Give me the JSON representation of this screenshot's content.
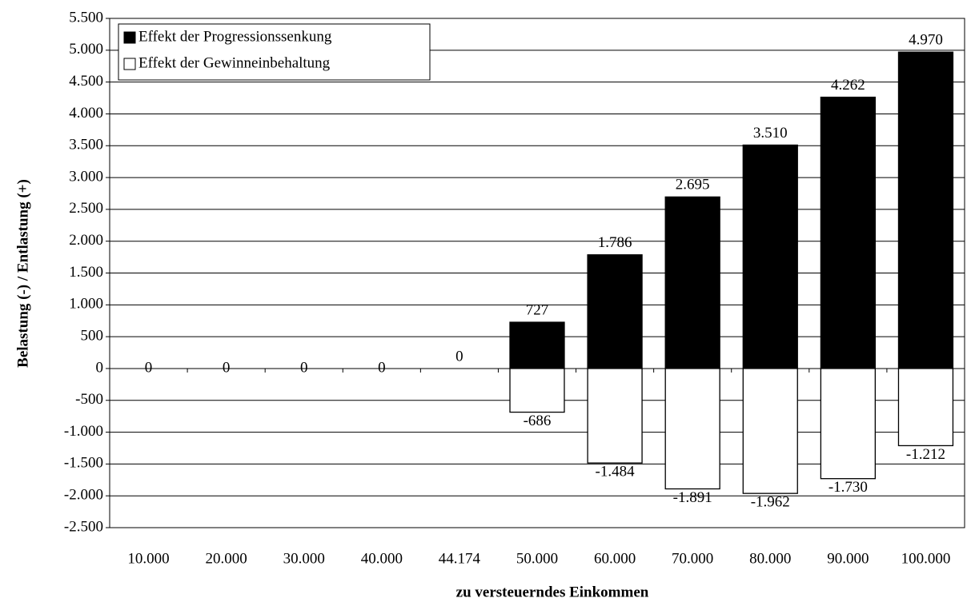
{
  "chart_data": {
    "type": "bar",
    "stacked": true,
    "x_label": "zu versteuerndes Einkommen",
    "y_label": "Belastung (-) / Entlastung (+)",
    "categories": [
      "10.000",
      "20.000",
      "30.000",
      "40.000",
      "44.174",
      "50.000",
      "60.000",
      "70.000",
      "80.000",
      "90.000",
      "100.000"
    ],
    "series": [
      {
        "name": "Effekt der Progressionssenkung",
        "color": "#000000",
        "values": [
          0,
          0,
          0,
          0,
          0,
          727,
          1786,
          2695,
          3510,
          4262,
          4970
        ],
        "value_labels": [
          null,
          null,
          null,
          null,
          "0",
          "727",
          "1.786",
          "2.695",
          "3.510",
          "4.262",
          "4.970"
        ]
      },
      {
        "name": "Effekt der Gewinneinbehaltung",
        "color": "#ffffff",
        "values": [
          0,
          0,
          0,
          0,
          null,
          -686,
          -1484,
          -1891,
          -1962,
          -1730,
          -1212
        ],
        "value_labels": [
          "0",
          "0",
          "0",
          "0",
          null,
          "-686",
          "-1.484",
          "-1.891",
          "-1.962",
          "-1.730",
          "-1.212"
        ]
      }
    ],
    "ylim": [
      -2500,
      5500
    ],
    "yticks": [
      {
        "value": -2500,
        "label": "-2.500"
      },
      {
        "value": -2000,
        "label": "-2.000"
      },
      {
        "value": -1500,
        "label": "-1.500"
      },
      {
        "value": -1000,
        "label": "-1.000"
      },
      -500,
      0,
      500,
      {
        "value": 1000,
        "label": "1.000"
      },
      {
        "value": 1500,
        "label": "1.500"
      },
      {
        "value": 2000,
        "label": "2.000"
      },
      {
        "value": 2500,
        "label": "2.500"
      },
      {
        "value": 3000,
        "label": "3.000"
      },
      {
        "value": 3500,
        "label": "3.500"
      },
      {
        "value": 4000,
        "label": "4.000"
      },
      {
        "value": 4500,
        "label": "4.500"
      },
      {
        "value": 5000,
        "label": "5.000"
      },
      {
        "value": 5500,
        "label": "5.500"
      }
    ],
    "grid": true,
    "legend": "upper-left"
  }
}
